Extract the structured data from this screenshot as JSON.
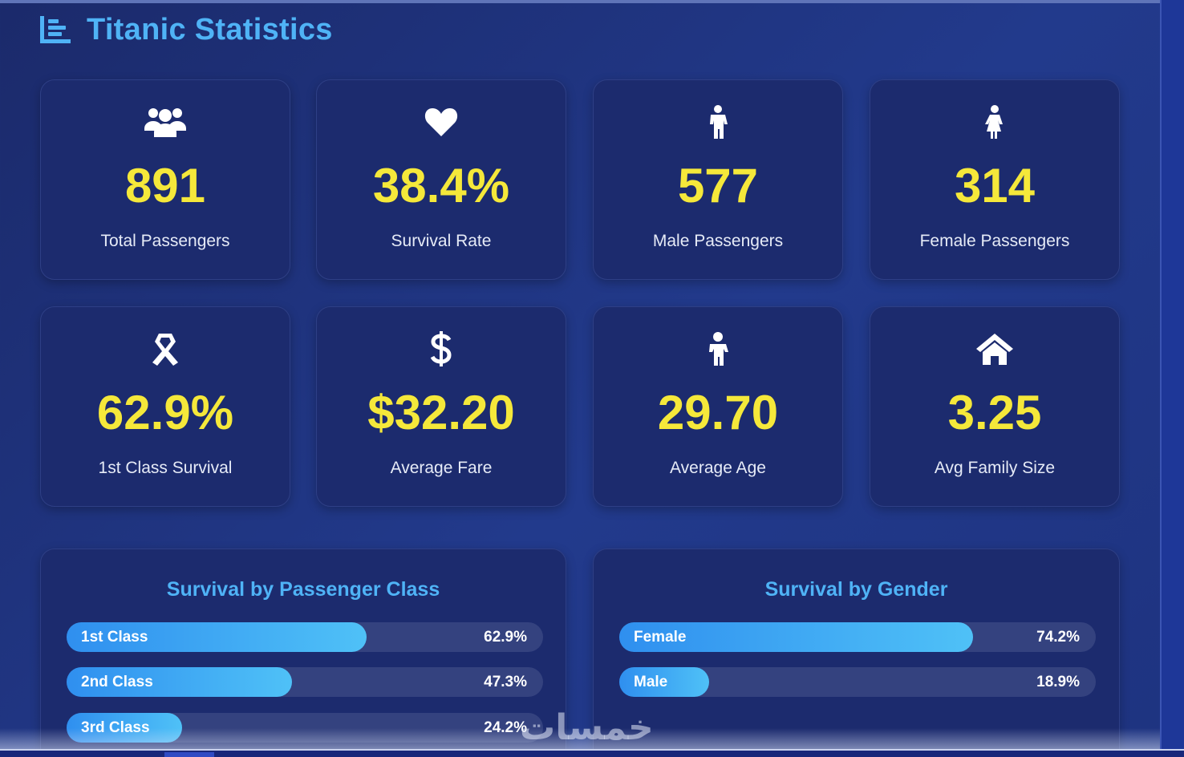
{
  "header": {
    "title": "Titanic Statistics",
    "icon": "chart-bar-icon"
  },
  "stats": [
    {
      "icon": "users-icon",
      "value": "891",
      "label": "Total Passengers"
    },
    {
      "icon": "heart-icon",
      "value": "38.4%",
      "label": "Survival Rate"
    },
    {
      "icon": "male-icon",
      "value": "577",
      "label": "Male Passengers"
    },
    {
      "icon": "female-icon",
      "value": "314",
      "label": "Female Passengers"
    },
    {
      "icon": "ribbon-icon",
      "value": "62.9%",
      "label": "1st Class Survival"
    },
    {
      "icon": "dollar-icon",
      "value": "$32.20",
      "label": "Average Fare"
    },
    {
      "icon": "child-icon",
      "value": "29.70",
      "label": "Average Age"
    },
    {
      "icon": "home-icon",
      "value": "3.25",
      "label": "Avg Family Size"
    }
  ],
  "class_survival": {
    "title": "Survival by Passenger Class",
    "bars": [
      {
        "label": "1st Class",
        "percent": 62.9,
        "display": "62.9%"
      },
      {
        "label": "2nd Class",
        "percent": 47.3,
        "display": "47.3%"
      },
      {
        "label": "3rd Class",
        "percent": 24.2,
        "display": "24.2%"
      }
    ]
  },
  "gender_survival": {
    "title": "Survival by Gender",
    "bars": [
      {
        "label": "Female",
        "percent": 74.2,
        "display": "74.2%"
      },
      {
        "label": "Male",
        "percent": 18.9,
        "display": "18.9%"
      }
    ]
  },
  "watermark": "خمسات",
  "colors": {
    "accent": "#4fb3f6",
    "value": "#f5e83a",
    "card": "#1c2b6e",
    "bar_start": "#2f8fef",
    "bar_end": "#4fc1f7"
  }
}
